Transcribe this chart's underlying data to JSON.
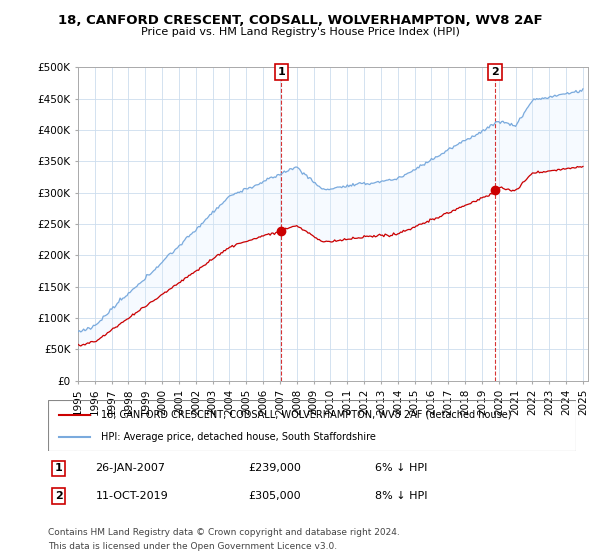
{
  "title": "18, CANFORD CRESCENT, CODSALL, WOLVERHAMPTON, WV8 2AF",
  "subtitle": "Price paid vs. HM Land Registry's House Price Index (HPI)",
  "legend_line1": "18, CANFORD CRESCENT, CODSALL, WOLVERHAMPTON, WV8 2AF (detached house)",
  "legend_line2": "HPI: Average price, detached house, South Staffordshire",
  "annotation1": {
    "label": "1",
    "date": "26-JAN-2007",
    "price": 239000,
    "note": "6% ↓ HPI"
  },
  "annotation2": {
    "label": "2",
    "date": "11-OCT-2019",
    "price": 305000,
    "note": "8% ↓ HPI"
  },
  "footer1": "Contains HM Land Registry data © Crown copyright and database right 2024.",
  "footer2": "This data is licensed under the Open Government Licence v3.0.",
  "hpi_color": "#7aaadd",
  "price_color": "#cc0000",
  "fill_color": "#ddeeff",
  "annot_color": "#cc0000",
  "sale1_year": 2007.08,
  "sale2_year": 2019.78,
  "sale1_price": 239000,
  "sale2_price": 305000,
  "ylim": [
    0,
    500000
  ],
  "yticks": [
    0,
    50000,
    100000,
    150000,
    200000,
    250000,
    300000,
    350000,
    400000,
    450000,
    500000
  ],
  "background_color": "#ffffff",
  "grid_color": "#ccddee"
}
